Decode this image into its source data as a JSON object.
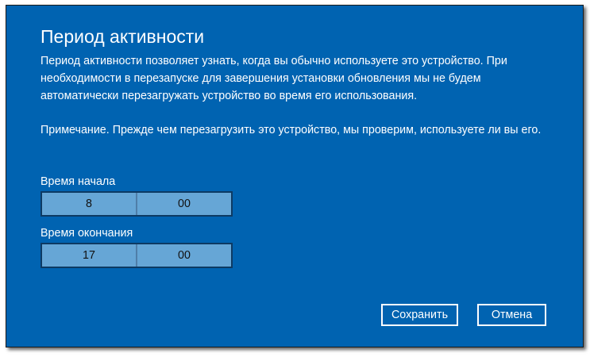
{
  "dialog": {
    "title": "Период активности",
    "description": "Период активности позволяет узнать, когда вы обычно используете это устройство. При необходимости в перезапуске для завершения установки обновления мы не будем автоматически перезагружать устройство во время его использования.",
    "note": "Примечание. Прежде чем перезагрузить это устройство, мы проверим, используете ли вы его.",
    "start": {
      "label": "Время начала",
      "hour": "8",
      "minute": "00"
    },
    "end": {
      "label": "Время окончания",
      "hour": "17",
      "minute": "00"
    },
    "save_label": "Сохранить",
    "cancel_label": "Отмена"
  },
  "colors": {
    "background": "#0063b1",
    "picker": "#66a6d6"
  }
}
